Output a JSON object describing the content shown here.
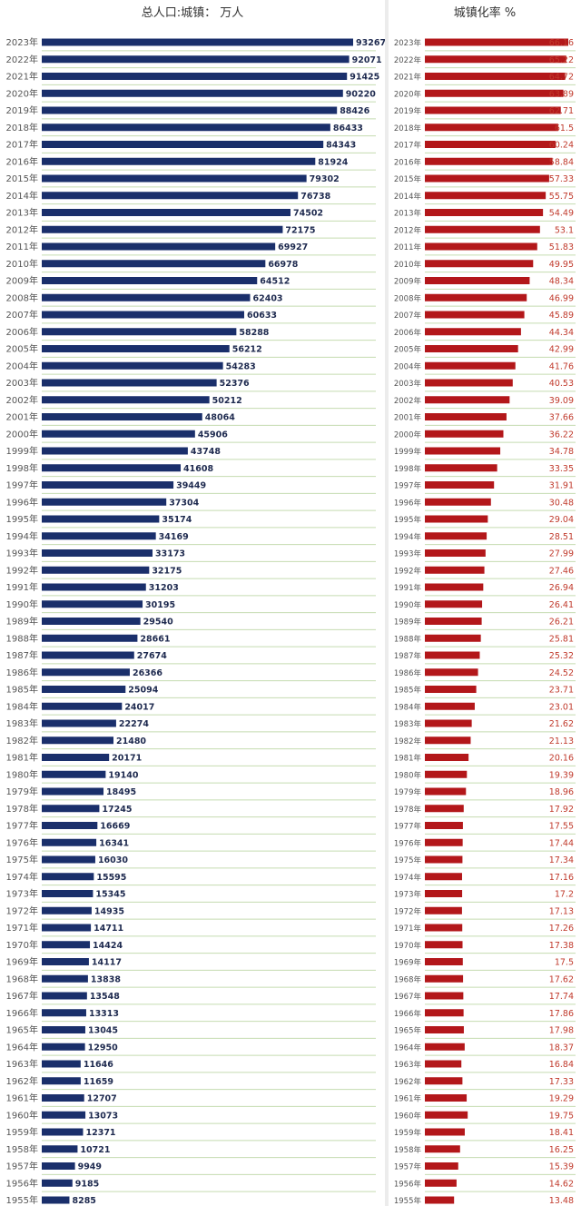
{
  "colors": {
    "left_bar": "#1a2f6b",
    "right_bar": "#b3171a",
    "grid": "#c5dcb0"
  },
  "chart_data": [
    {
      "type": "bar",
      "orientation": "horizontal",
      "title": "总人口:城镇： 万人",
      "grid": true,
      "categories": [
        "2023年",
        "2022年",
        "2021年",
        "2020年",
        "2019年",
        "2018年",
        "2017年",
        "2016年",
        "2015年",
        "2014年",
        "2013年",
        "2012年",
        "2011年",
        "2010年",
        "2009年",
        "2008年",
        "2007年",
        "2006年",
        "2005年",
        "2004年",
        "2003年",
        "2002年",
        "2001年",
        "2000年",
        "1999年",
        "1998年",
        "1997年",
        "1996年",
        "1995年",
        "1994年",
        "1993年",
        "1992年",
        "1991年",
        "1990年",
        "1989年",
        "1988年",
        "1987年",
        "1986年",
        "1985年",
        "1984年",
        "1983年",
        "1982年",
        "1981年",
        "1980年",
        "1979年",
        "1978年",
        "1977年",
        "1976年",
        "1975年",
        "1974年",
        "1973年",
        "1972年",
        "1971年",
        "1970年",
        "1969年",
        "1968年",
        "1967年",
        "1966年",
        "1965年",
        "1964年",
        "1963年",
        "1962年",
        "1961年",
        "1960年",
        "1959年",
        "1958年",
        "1957年",
        "1956年",
        "1955年"
      ],
      "values": [
        93267,
        92071,
        91425,
        90220,
        88426,
        86433,
        84343,
        81924,
        79302,
        76738,
        74502,
        72175,
        69927,
        66978,
        64512,
        62403,
        60633,
        58288,
        56212,
        54283,
        52376,
        50212,
        48064,
        45906,
        43748,
        41608,
        39449,
        37304,
        35174,
        34169,
        33173,
        32175,
        31203,
        30195,
        29540,
        28661,
        27674,
        26366,
        25094,
        24017,
        22274,
        21480,
        20171,
        19140,
        18495,
        17245,
        16669,
        16341,
        16030,
        15595,
        15345,
        14935,
        14711,
        14424,
        14117,
        13838,
        13548,
        13313,
        13045,
        12950,
        11646,
        11659,
        12707,
        13073,
        12371,
        10721,
        9949,
        9185,
        8285
      ]
    },
    {
      "type": "bar",
      "orientation": "horizontal",
      "title": "城镇化率 %",
      "grid": true,
      "categories": [
        "2023年",
        "2022年",
        "2021年",
        "2020年",
        "2019年",
        "2018年",
        "2017年",
        "2016年",
        "2015年",
        "2014年",
        "2013年",
        "2012年",
        "2011年",
        "2010年",
        "2009年",
        "2008年",
        "2007年",
        "2006年",
        "2005年",
        "2004年",
        "2003年",
        "2002年",
        "2001年",
        "2000年",
        "1999年",
        "1998年",
        "1997年",
        "1996年",
        "1995年",
        "1994年",
        "1993年",
        "1992年",
        "1991年",
        "1990年",
        "1989年",
        "1988年",
        "1987年",
        "1986年",
        "1985年",
        "1984年",
        "1983年",
        "1982年",
        "1981年",
        "1980年",
        "1979年",
        "1978年",
        "1977年",
        "1976年",
        "1975年",
        "1974年",
        "1973年",
        "1972年",
        "1971年",
        "1970年",
        "1969年",
        "1968年",
        "1967年",
        "1966年",
        "1965年",
        "1964年",
        "1963年",
        "1962年",
        "1961年",
        "1960年",
        "1959年",
        "1958年",
        "1957年",
        "1956年",
        "1955年"
      ],
      "values": [
        "66.16",
        "65.22",
        "64.72",
        "63.89",
        "62.71",
        "61.5",
        "60.24",
        "58.84",
        "57.33",
        "55.75",
        "54.49",
        "53.1",
        "51.83",
        "49.95",
        "48.34",
        "46.99",
        "45.89",
        "44.34",
        "42.99",
        "41.76",
        "40.53",
        "39.09",
        "37.66",
        "36.22",
        "34.78",
        "33.35",
        "31.91",
        "30.48",
        "29.04",
        "28.51",
        "27.99",
        "27.46",
        "26.94",
        "26.41",
        "26.21",
        "25.81",
        "25.32",
        "24.52",
        "23.71",
        "23.01",
        "21.62",
        "21.13",
        "20.16",
        "19.39",
        "18.96",
        "17.92",
        "17.55",
        "17.44",
        "17.34",
        "17.16",
        "17.2",
        "17.13",
        "17.26",
        "17.38",
        "17.5",
        "17.62",
        "17.74",
        "17.86",
        "17.98",
        "18.37",
        "16.84",
        "17.33",
        "19.29",
        "19.75",
        "18.41",
        "16.25",
        "15.39",
        "14.62",
        "13.48"
      ]
    }
  ]
}
